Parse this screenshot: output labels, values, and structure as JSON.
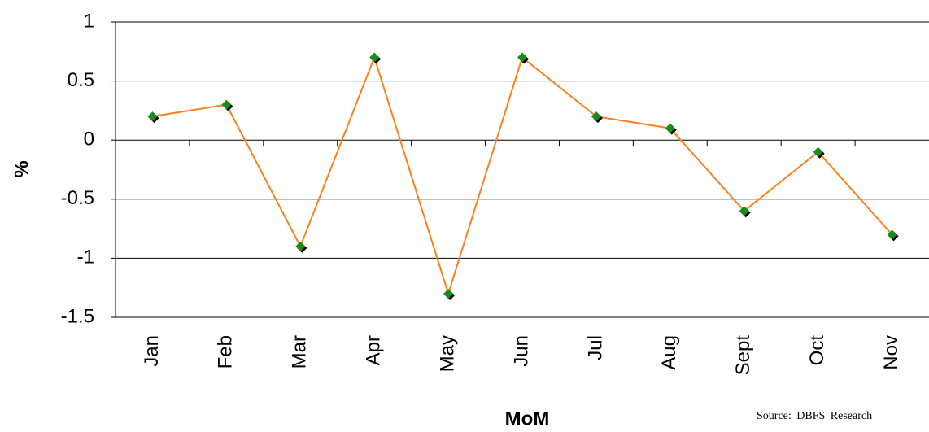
{
  "chart_data": {
    "type": "line",
    "categories": [
      "Jan",
      "Feb",
      "Mar",
      "Apr",
      "May",
      "Jun",
      "Jul",
      "Aug",
      "Sept",
      "Oct",
      "Nov"
    ],
    "series": [
      {
        "color": "#ff7f1a",
        "marker_color": "#1a8c1a",
        "values": [
          0.2,
          0.3,
          -0.9,
          0.7,
          -1.3,
          0.7,
          0.2,
          0.1,
          -0.6,
          -0.1,
          -0.8
        ]
      }
    ],
    "ylim": [
      -1.5,
      1
    ],
    "yticks": [
      1,
      0.5,
      0,
      -0.5,
      -1,
      -1.5
    ],
    "grid": true,
    "y_label": "%",
    "x_label": "MoM",
    "source": "Source: DBFS Research"
  }
}
